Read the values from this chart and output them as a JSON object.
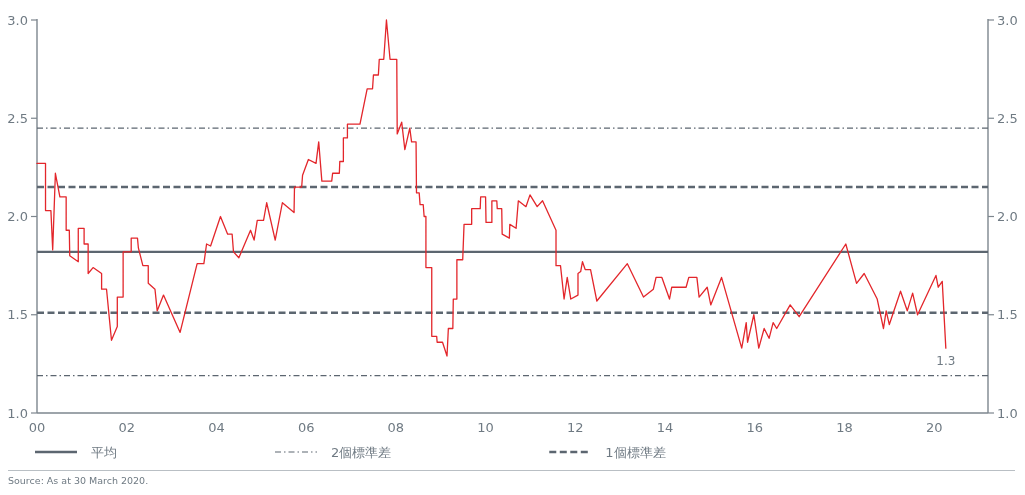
{
  "chart_data": {
    "type": "line",
    "x": [
      2000.0,
      2000.19,
      2000.19,
      2000.31,
      2000.35,
      2000.41,
      2000.51,
      2000.65,
      2000.65,
      2000.72,
      2000.73,
      2000.92,
      2000.92,
      2001.05,
      2001.05,
      2001.14,
      2001.14,
      2001.25,
      2001.44,
      2001.44,
      2001.55,
      2001.66,
      2001.79,
      2001.79,
      2001.92,
      2001.92,
      2002.1,
      2002.1,
      2002.24,
      2002.26,
      2002.36,
      2002.48,
      2002.48,
      2002.63,
      2002.68,
      2002.82,
      2003.19,
      2003.57,
      2003.72,
      2003.78,
      2003.87,
      2004.09,
      2004.25,
      2004.35,
      2004.38,
      2004.5,
      2004.76,
      2004.84,
      2004.91,
      2005.05,
      2005.12,
      2005.31,
      2005.47,
      2005.73,
      2005.74,
      2005.9,
      2005.92,
      2006.05,
      2006.22,
      2006.28,
      2006.35,
      2006.57,
      2006.59,
      2006.74,
      2006.75,
      2006.83,
      2006.83,
      2006.92,
      2006.92,
      2007.2,
      2007.36,
      2007.48,
      2007.5,
      2007.61,
      2007.63,
      2007.73,
      2007.79,
      2007.87,
      2008.02,
      2008.03,
      2008.13,
      2008.2,
      2008.31,
      2008.35,
      2008.45,
      2008.46,
      2008.52,
      2008.54,
      2008.61,
      2008.63,
      2008.67,
      2008.67,
      2008.8,
      2008.8,
      2008.91,
      2008.92,
      2009.04,
      2009.14,
      2009.17,
      2009.27,
      2009.28,
      2009.36,
      2009.36,
      2009.49,
      2009.52,
      2009.69,
      2009.69,
      2009.88,
      2009.89,
      2010.0,
      2010.01,
      2010.14,
      2010.14,
      2010.25,
      2010.26,
      2010.36,
      2010.37,
      2010.53,
      2010.54,
      2010.68,
      2010.73,
      2010.9,
      2010.99,
      2011.15,
      2011.27,
      2011.57,
      2011.57,
      2011.67,
      2011.75,
      2011.82,
      2011.9,
      2012.06,
      2012.06,
      2012.12,
      2012.16,
      2012.22,
      2012.34,
      2012.48,
      2013.16,
      2013.52,
      2013.74,
      2013.8,
      2013.93,
      2014.1,
      2014.15,
      2014.47,
      2014.53,
      2014.71,
      2014.76,
      2014.94,
      2015.02,
      2015.26,
      2015.71,
      2015.81,
      2015.84,
      2015.98,
      2016.09,
      2016.21,
      2016.32,
      2016.41,
      2016.49,
      2016.79,
      2016.99,
      2018.03,
      2018.27,
      2018.44,
      2018.73,
      2018.87,
      2018.93,
      2019.0,
      2019.25,
      2019.4,
      2019.52,
      2019.63,
      2020.04,
      2020.09,
      2020.18,
      2020.26
    ],
    "series": [
      {
        "color": "#e3262b",
        "values": [
          2.27,
          2.27,
          2.03,
          2.03,
          1.83,
          2.22,
          2.1,
          2.1,
          1.93,
          1.93,
          1.8,
          1.77,
          1.94,
          1.94,
          1.86,
          1.86,
          1.71,
          1.74,
          1.71,
          1.63,
          1.63,
          1.37,
          1.44,
          1.59,
          1.59,
          1.82,
          1.82,
          1.89,
          1.89,
          1.84,
          1.75,
          1.75,
          1.66,
          1.63,
          1.52,
          1.6,
          1.41,
          1.76,
          1.76,
          1.86,
          1.85,
          2.0,
          1.91,
          1.91,
          1.82,
          1.79,
          1.93,
          1.88,
          1.98,
          1.98,
          2.07,
          1.88,
          2.07,
          2.02,
          2.15,
          2.15,
          2.21,
          2.29,
          2.27,
          2.38,
          2.18,
          2.18,
          2.22,
          2.22,
          2.28,
          2.28,
          2.4,
          2.4,
          2.47,
          2.47,
          2.65,
          2.65,
          2.72,
          2.72,
          2.8,
          2.8,
          3.0,
          2.8,
          2.8,
          2.42,
          2.48,
          2.34,
          2.45,
          2.38,
          2.38,
          2.12,
          2.12,
          2.06,
          2.06,
          2.0,
          2.0,
          1.74,
          1.74,
          1.39,
          1.39,
          1.36,
          1.36,
          1.29,
          1.43,
          1.43,
          1.58,
          1.58,
          1.78,
          1.78,
          1.96,
          1.96,
          2.04,
          2.04,
          2.1,
          2.1,
          1.97,
          1.97,
          2.08,
          2.08,
          2.04,
          2.04,
          1.91,
          1.89,
          1.96,
          1.94,
          2.08,
          2.05,
          2.11,
          2.05,
          2.08,
          1.93,
          1.75,
          1.75,
          1.58,
          1.69,
          1.58,
          1.6,
          1.71,
          1.72,
          1.77,
          1.73,
          1.73,
          1.57,
          1.76,
          1.59,
          1.63,
          1.69,
          1.69,
          1.58,
          1.64,
          1.64,
          1.69,
          1.69,
          1.59,
          1.64,
          1.55,
          1.69,
          1.33,
          1.46,
          1.36,
          1.5,
          1.33,
          1.43,
          1.38,
          1.46,
          1.43,
          1.55,
          1.49,
          1.86,
          1.66,
          1.71,
          1.58,
          1.43,
          1.52,
          1.45,
          1.62,
          1.52,
          1.61,
          1.5,
          1.7,
          1.64,
          1.67,
          1.33
        ]
      }
    ],
    "xlim": [
      2000,
      2021.2
    ],
    "xticks": [
      {
        "value": 2000,
        "label": "00"
      },
      {
        "value": 2002,
        "label": "02"
      },
      {
        "value": 2004,
        "label": "04"
      },
      {
        "value": 2006,
        "label": "06"
      },
      {
        "value": 2008,
        "label": "08"
      },
      {
        "value": 2010,
        "label": "10"
      },
      {
        "value": 2012,
        "label": "12"
      },
      {
        "value": 2014,
        "label": "14"
      },
      {
        "value": 2016,
        "label": "16"
      },
      {
        "value": 2018,
        "label": "18"
      },
      {
        "value": 2020,
        "label": "20"
      }
    ],
    "ylim": [
      1,
      3
    ],
    "yticks": [
      {
        "value": 1,
        "label": "1.0"
      },
      {
        "value": 1.5,
        "label": "1.5"
      },
      {
        "value": 2,
        "label": "2.0"
      },
      {
        "value": 2.5,
        "label": "2.5"
      },
      {
        "value": 3,
        "label": "3.0"
      }
    ],
    "y2lim": [
      1,
      3
    ],
    "y2ticks": [
      {
        "value": 1,
        "label": "1.0"
      },
      {
        "value": 1.5,
        "label": "1.5"
      },
      {
        "value": 2,
        "label": "2.0"
      },
      {
        "value": 2.5,
        "label": "2.5"
      },
      {
        "value": 3,
        "label": "3.0"
      }
    ],
    "ref_lines": [
      {
        "axis": "y",
        "value": 1.82,
        "label": "平均",
        "color": "#5c6670",
        "line_style": "solid"
      },
      {
        "axis": "y",
        "value": 2.45,
        "label": "2個標準差",
        "color": "#5c6670",
        "line_style": "dashdot"
      },
      {
        "axis": "y",
        "value": 1.19,
        "color": "#5c6670",
        "line_style": "dashdot"
      },
      {
        "axis": "y",
        "value": 2.15,
        "label": "1個標準差",
        "color": "#5c6670",
        "line_style": "dashed"
      },
      {
        "axis": "y",
        "value": 1.51,
        "color": "#5c6670",
        "line_style": "dashed"
      }
    ],
    "annotations": [
      {
        "text": "1.3",
        "x": 2020.26,
        "y": 1.33
      },
      "Source: As at 30 March 2020."
    ],
    "legend": "bottom"
  }
}
